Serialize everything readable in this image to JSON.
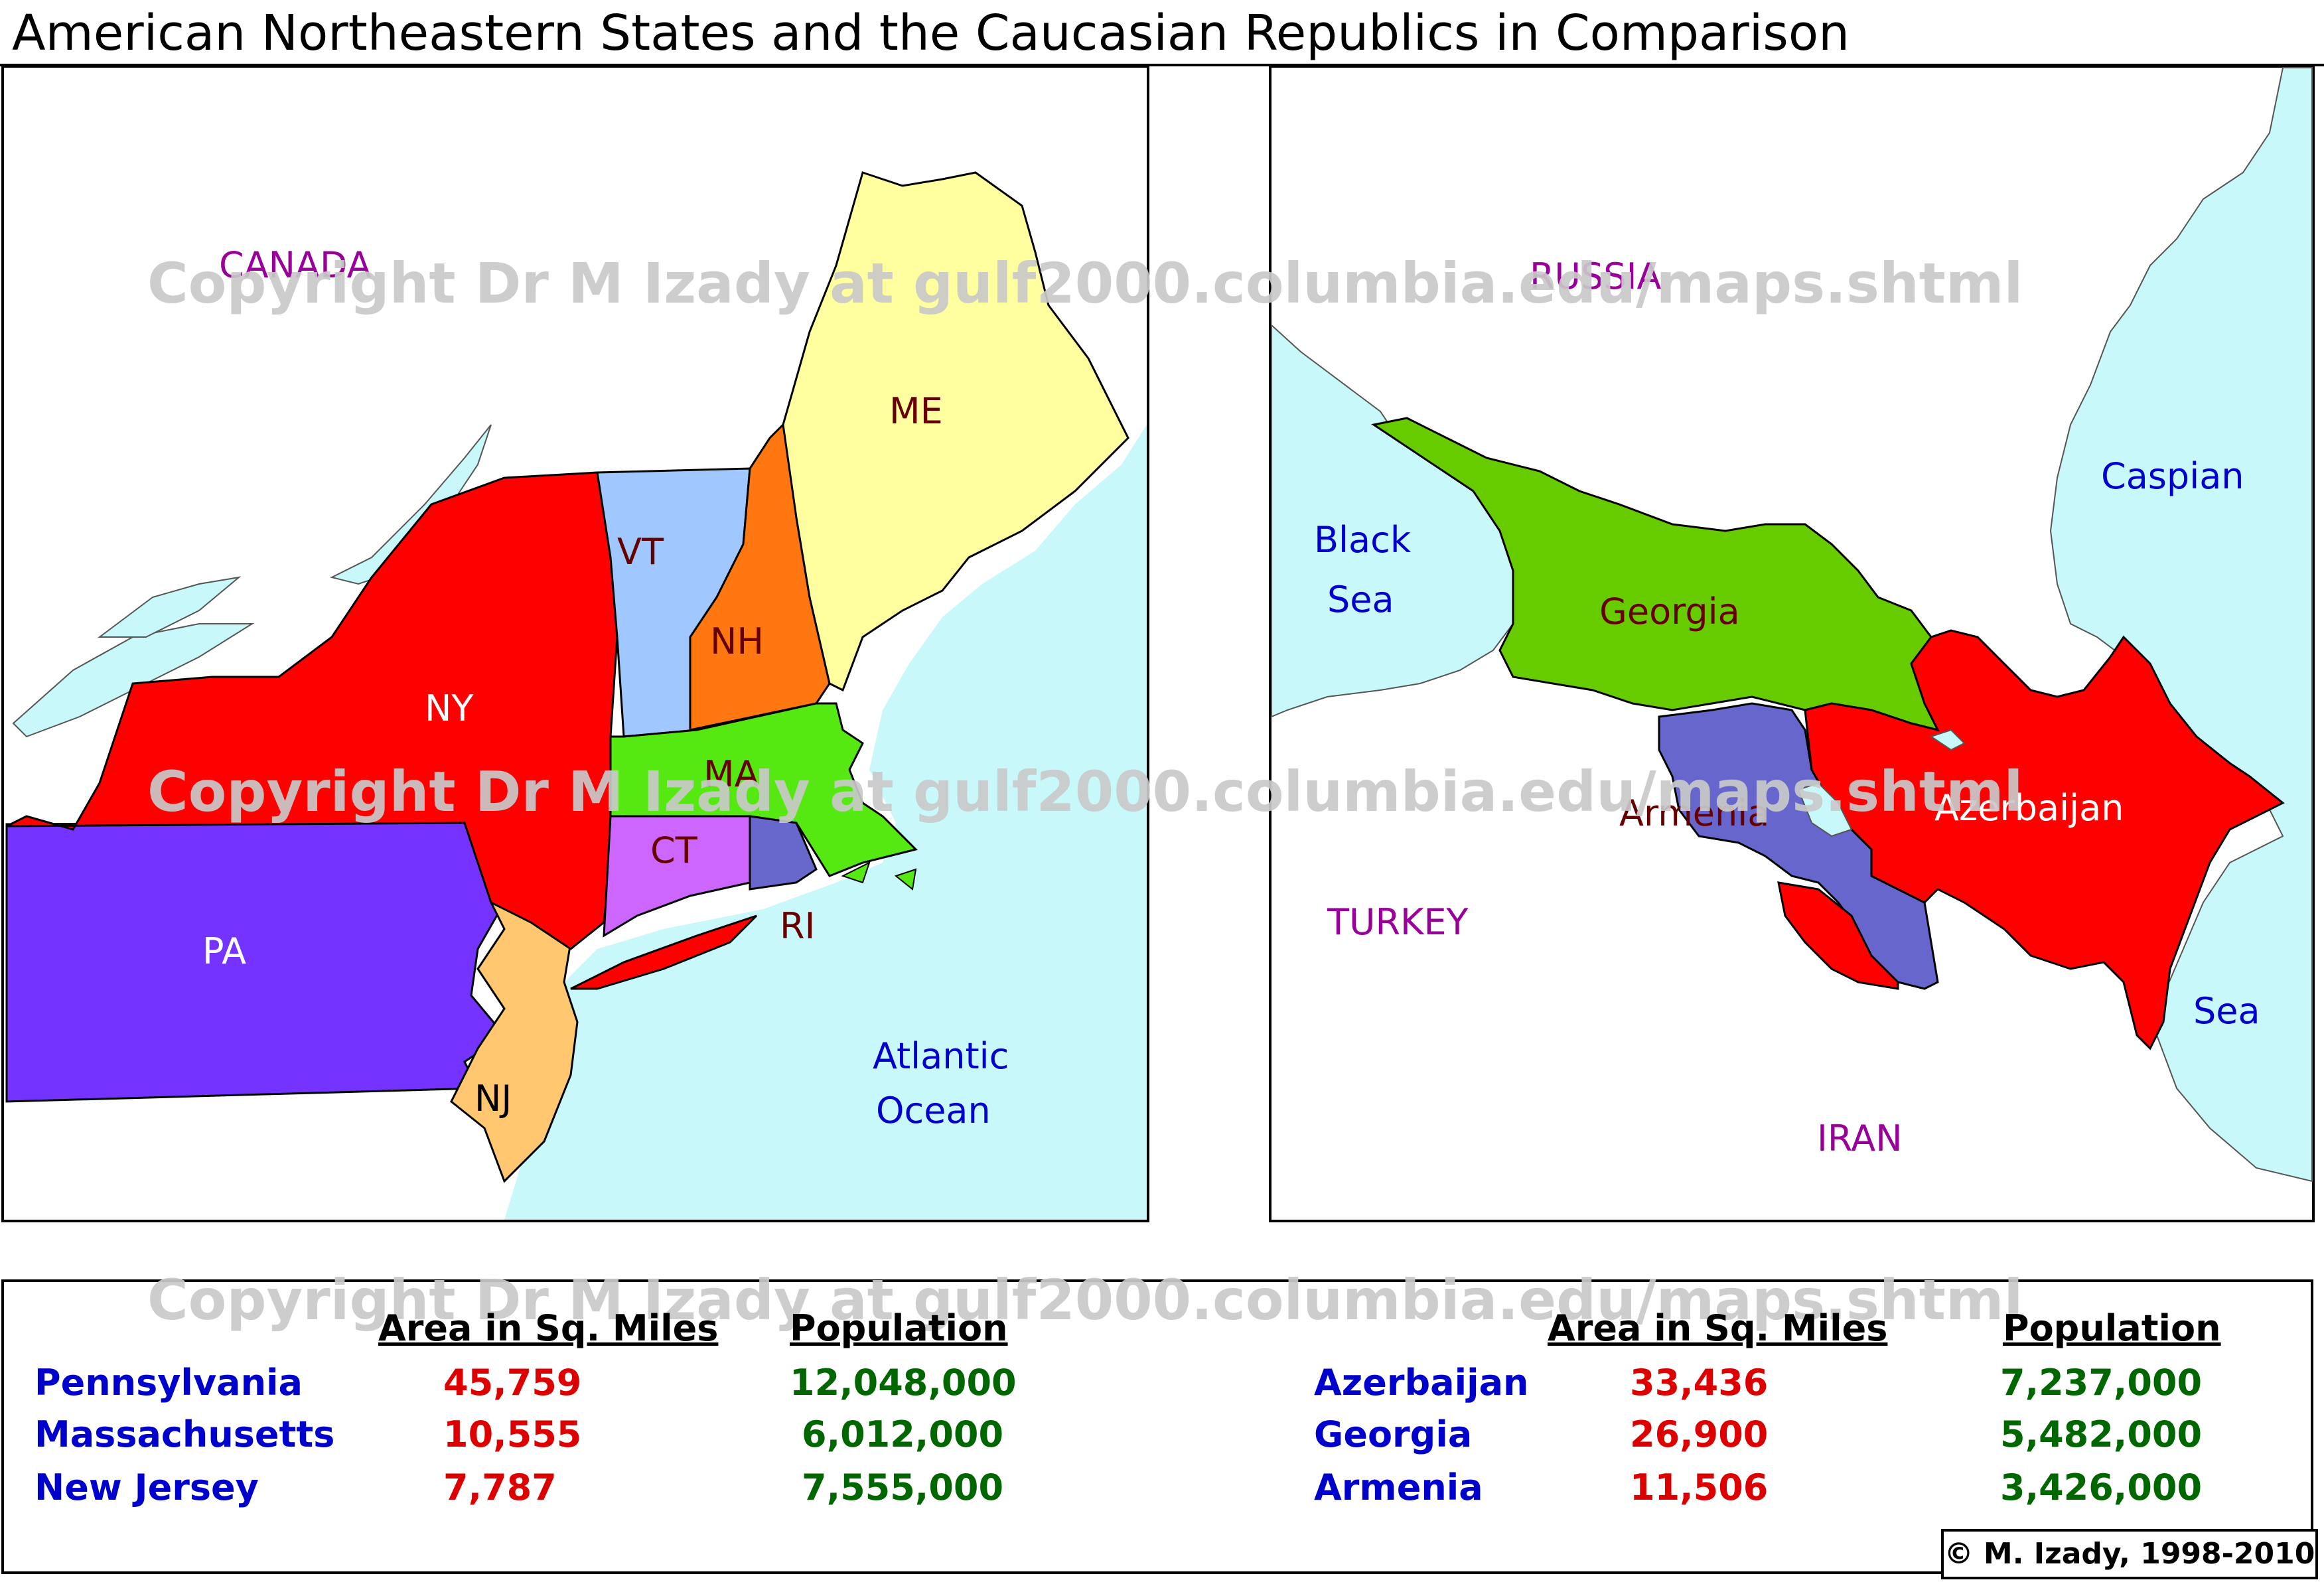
{
  "title": "American Northeastern States and the Caucasian Republics in Comparison",
  "watermark": "Copyright Dr M Izady at gulf2000.columbia.edu/maps.shtml",
  "credit": "© M. Izady, 1998-2010",
  "colors": {
    "water": "#c8f8fa",
    "land": "#ffffff",
    "NY": "#ff0000",
    "PA": "#7433ff",
    "NJ": "#ffc870",
    "CT": "#cc66ff",
    "RI": "#6868cc",
    "MA": "#55e811",
    "VT": "#a0c8ff",
    "NH": "#ff7711",
    "ME": "#ffffa0",
    "Georgia": "#66cc00",
    "Armenia": "#6666cc",
    "Azerbaijan": "#ff0000",
    "names": "#0000cc",
    "areas": "#dd0000",
    "populations": "#006600",
    "region_labels": "#990099"
  },
  "map_left": {
    "labels": {
      "canada": "CANADA",
      "NY": "NY",
      "PA": "PA",
      "NJ": "NJ",
      "VT": "VT",
      "NH": "NH",
      "ME": "ME",
      "MA": "MA",
      "CT": "CT",
      "RI": "RI",
      "atlantic_line1": "Atlantic",
      "atlantic_line2": "Ocean"
    }
  },
  "map_right": {
    "labels": {
      "russia": "RUSSIA",
      "black_line1": "Black",
      "black_line2": "Sea",
      "caspian_line1": "Caspian",
      "caspian_line2": "Sea",
      "georgia": "Georgia",
      "armenia": "Armenia",
      "azerbaijan": "Azerbaijan",
      "turkey": "TURKEY",
      "iran": "IRAN"
    }
  },
  "table_left": {
    "headers": {
      "area": "Area in Sq. Miles",
      "population": "Population"
    },
    "rows": [
      {
        "name": "Pennsylvania",
        "area": "45,759",
        "population": "12,048,000"
      },
      {
        "name": "Massachusetts",
        "area": "10,555",
        "population": "6,012,000"
      },
      {
        "name": "New Jersey",
        "area": "7,787",
        "population": "7,555,000"
      }
    ]
  },
  "table_right": {
    "headers": {
      "area": "Area in Sq. Miles",
      "population": "Population"
    },
    "rows": [
      {
        "name": "Azerbaijan",
        "area": "33,436",
        "population": "7,237,000"
      },
      {
        "name": "Georgia",
        "area": "26,900",
        "population": "5,482,000"
      },
      {
        "name": "Armenia",
        "area": "11,506",
        "population": "3,426,000"
      }
    ]
  }
}
